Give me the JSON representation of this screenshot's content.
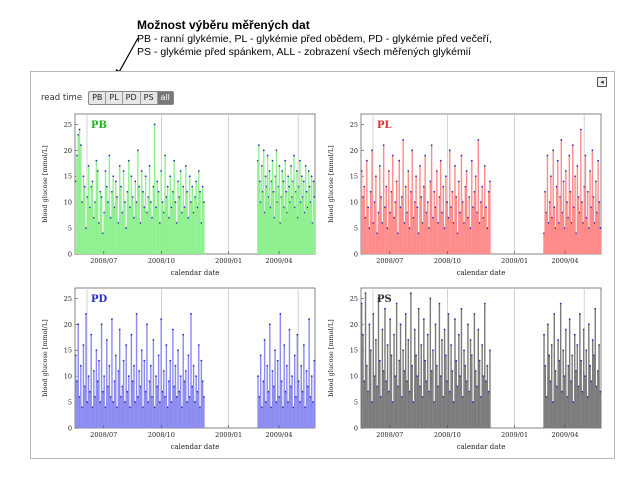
{
  "annotation": {
    "title": "Možnost výběru měřených dat",
    "lines": [
      "PB - ranní glykémie, PL - glykémie před obědem, PD - glykémie před večeří,",
      "PS - glykémie před spánkem, ALL - zobrazení všech měřených glykémií"
    ]
  },
  "selector": {
    "label": "read time",
    "options": [
      "PB",
      "PL",
      "PD",
      "PS",
      "all"
    ],
    "selected": "all"
  },
  "chart_data": [
    {
      "type": "bar",
      "label": "PB",
      "color": "#20b020",
      "fill": "#8ef08e",
      "point": "#3030b0",
      "xlabel": "calendar date",
      "ylabel": "blood glucose [mmol/L]",
      "ylim": [
        0,
        25
      ],
      "yticks": [
        0,
        5,
        10,
        15,
        20,
        25
      ],
      "xticks": [
        "2008/07",
        "2008/10",
        "2009/01",
        "2009/04"
      ],
      "seg1": [
        14,
        19,
        23,
        24,
        21,
        10,
        15,
        13,
        5,
        11,
        17,
        9,
        13,
        14,
        7,
        10,
        18,
        16,
        6,
        12,
        11,
        4,
        8,
        16,
        13,
        10,
        19,
        7,
        12,
        15,
        9,
        14,
        11,
        6,
        17,
        13,
        8,
        16,
        10,
        5,
        12,
        18,
        9,
        15,
        11,
        7,
        14,
        10,
        20,
        13,
        6,
        16,
        12,
        9,
        15,
        8,
        11,
        17,
        10,
        7,
        13,
        25,
        9,
        14,
        12,
        6,
        16,
        10,
        8,
        19,
        11,
        13,
        7,
        15,
        9,
        12,
        18,
        10,
        6,
        14,
        11,
        16,
        8,
        13,
        9,
        17,
        12,
        7,
        15,
        10,
        13,
        8,
        11,
        14,
        9,
        16,
        12,
        6,
        13,
        10
      ],
      "seg2": [
        18,
        21,
        14,
        10,
        17,
        12,
        20,
        8,
        15,
        13,
        19,
        11,
        16,
        9,
        14,
        18,
        12,
        7,
        15,
        20,
        10,
        13,
        17,
        6,
        11,
        16,
        14,
        9,
        18,
        12,
        8,
        15,
        13,
        10,
        17,
        11,
        14,
        19,
        9,
        12,
        16,
        7,
        13,
        18,
        10,
        15,
        11,
        14,
        8,
        17,
        12,
        9,
        16,
        13,
        10,
        15,
        6,
        14,
        11
      ]
    },
    {
      "type": "bar",
      "label": "PL",
      "color": "#e03030",
      "fill": "#ff8a8a",
      "point": "#3030b0",
      "xlabel": "calendar date",
      "ylabel": "blood glucose [mmol/L]",
      "ylim": [
        0,
        25
      ],
      "yticks": [
        0,
        5,
        10,
        15,
        20,
        25
      ],
      "xticks": [
        "2008/07",
        "2008/10",
        "2009/01",
        "2009/04"
      ],
      "seg1": [
        16,
        11,
        13,
        7,
        18,
        9,
        5,
        12,
        20,
        6,
        10,
        15,
        4,
        8,
        17,
        11,
        6,
        21,
        9,
        13,
        5,
        16,
        8,
        12,
        19,
        7,
        10,
        14,
        4,
        18,
        9,
        11,
        22,
        6,
        13,
        8,
        16,
        5,
        12,
        20,
        7,
        10,
        15,
        9,
        4,
        17,
        11,
        6,
        13,
        19,
        8,
        10,
        5,
        14,
        21,
        7,
        12,
        9,
        16,
        6,
        11,
        18,
        8,
        13,
        5,
        15,
        10,
        7,
        20,
        9,
        12,
        6,
        17,
        11,
        4,
        14,
        8,
        19,
        10,
        6,
        13,
        16,
        7,
        11,
        5,
        18,
        9,
        12,
        15,
        8,
        22,
        6,
        10,
        13,
        7,
        17,
        9,
        5,
        12,
        14
      ],
      "seg2": [
        4,
        12,
        8,
        19,
        6,
        10,
        15,
        7,
        20,
        9,
        5,
        13,
        18,
        6,
        11,
        22,
        8,
        14,
        5,
        16,
        10,
        7,
        19,
        12,
        6,
        21,
        9,
        15,
        4,
        17,
        11,
        8,
        24,
        10,
        6,
        13,
        19,
        7,
        12,
        5,
        16,
        9,
        20,
        11,
        6,
        14,
        8,
        18,
        10,
        5
      ]
    },
    {
      "type": "bar",
      "label": "PD",
      "color": "#2a2ac8",
      "fill": "#8a8af0",
      "point": "#3030b0",
      "xlabel": "calendar date",
      "ylabel": "blood glucose [mmol/L]",
      "ylim": [
        0,
        25
      ],
      "yticks": [
        0,
        5,
        10,
        15,
        20,
        25
      ],
      "xticks": [
        "2008/07",
        "2008/10",
        "2009/01",
        "2009/04"
      ],
      "seg1": [
        14,
        9,
        20,
        6,
        12,
        4,
        16,
        8,
        22,
        5,
        10,
        7,
        18,
        4,
        11,
        6,
        15,
        9,
        13,
        5,
        20,
        7,
        10,
        4,
        17,
        8,
        12,
        6,
        21,
        5,
        9,
        14,
        4,
        11,
        19,
        6,
        8,
        13,
        5,
        16,
        7,
        10,
        4,
        18,
        9,
        12,
        5,
        22,
        6,
        11,
        8,
        15,
        4,
        13,
        7,
        20,
        5,
        9,
        12,
        6,
        17,
        4,
        10,
        8,
        14,
        5,
        21,
        7,
        11,
        6,
        16,
        4,
        9,
        13,
        5,
        19,
        8,
        12,
        6,
        15,
        7,
        10,
        4,
        18,
        9,
        11,
        5,
        14,
        6,
        22,
        8,
        12,
        5,
        10,
        7,
        16,
        4,
        13,
        9,
        6
      ],
      "seg2": [
        10,
        6,
        14,
        4,
        9,
        17,
        5,
        12,
        7,
        20,
        4,
        11,
        8,
        15,
        5,
        13,
        6,
        22,
        9,
        4,
        16,
        7,
        12,
        5,
        19,
        8,
        10,
        4,
        14,
        6,
        18,
        9,
        5,
        12,
        7,
        16,
        4,
        11,
        8,
        21,
        6,
        10,
        5,
        13
      ]
    },
    {
      "type": "bar",
      "label": "PS",
      "color": "#303030",
      "fill": "#7a7a7a",
      "point": "#3030b0",
      "xlabel": "calendar date",
      "ylabel": "blood glucose [mmol/L]",
      "ylim": [
        0,
        25
      ],
      "yticks": [
        0,
        5,
        10,
        15,
        20,
        25
      ],
      "xticks": [
        "2008/07",
        "2008/10",
        "2009/01",
        "2009/04"
      ],
      "seg1": [
        24,
        18,
        9,
        26,
        12,
        7,
        20,
        15,
        5,
        22,
        10,
        17,
        8,
        25,
        13,
        6,
        19,
        11,
        23,
        9,
        16,
        7,
        21,
        14,
        5,
        18,
        10,
        24,
        8,
        13,
        20,
        6,
        15,
        11,
        22,
        9,
        17,
        7,
        26,
        12,
        5,
        19,
        14,
        10,
        23,
        8,
        16,
        6,
        21,
        13,
        9,
        18,
        7,
        25,
        11,
        15,
        5,
        20,
        12,
        8,
        24,
        10,
        17,
        6,
        19,
        14,
        9,
        22,
        7,
        16,
        11,
        5,
        21,
        13,
        8,
        18,
        10,
        23,
        6,
        15,
        12,
        9,
        20,
        7,
        17,
        14,
        5,
        22,
        11,
        8,
        19,
        13,
        6,
        16,
        10,
        24,
        9,
        12,
        7,
        15
      ],
      "seg2": [
        18,
        12,
        6,
        20,
        14,
        9,
        16,
        5,
        22,
        11,
        8,
        17,
        13,
        24,
        7,
        15,
        10,
        19,
        6,
        12,
        21,
        9,
        14,
        5,
        18,
        11,
        16,
        8,
        22,
        13,
        7,
        19,
        10,
        15,
        6,
        20,
        12,
        9,
        17,
        14,
        23,
        8,
        11,
        16,
        7
      ]
    }
  ]
}
